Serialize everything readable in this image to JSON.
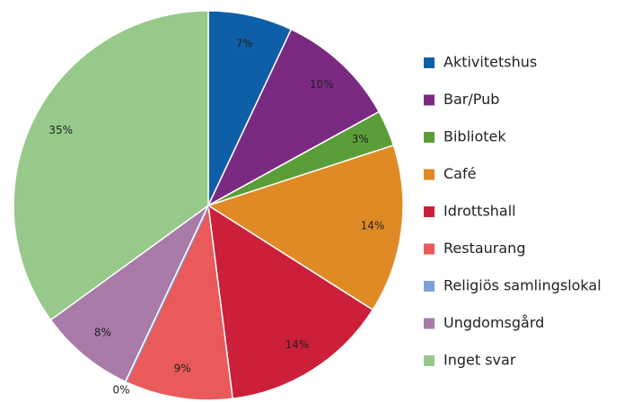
{
  "chart_data": {
    "type": "pie",
    "categories": [
      "Aktivitetshus",
      "Bar/Pub",
      "Bibliotek",
      "Café",
      "Idrottshall",
      "Restaurang",
      "Religiös samlingslokal",
      "Ungdomsgård",
      "Inget svar"
    ],
    "values": [
      7,
      10,
      3,
      14,
      14,
      9,
      0,
      8,
      35
    ],
    "value_labels": [
      "7%",
      "10%",
      "3%",
      "14%",
      "14%",
      "9%",
      "0%",
      "8%",
      "35%"
    ],
    "colors": [
      "#0f5fa8",
      "#7b2a82",
      "#5a9e3a",
      "#e08a25",
      "#cc1f3a",
      "#ea5a5a",
      "#7fa0d8",
      "#a97ba8",
      "#96c98a"
    ],
    "legend": "right"
  }
}
